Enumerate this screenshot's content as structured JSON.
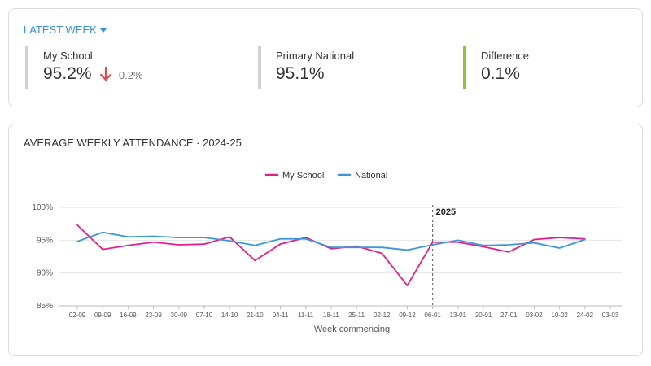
{
  "summary": {
    "dropdown_label": "LATEST WEEK",
    "my_school": {
      "label": "My School",
      "value": "95.2%",
      "change": "-0.2%",
      "change_direction": "down",
      "change_color": "#e24b4b"
    },
    "national": {
      "label": "Primary National",
      "value": "95.1%"
    },
    "difference": {
      "label": "Difference",
      "value": "0.1%",
      "accent_color": "#8cc63f"
    }
  },
  "chart": {
    "title": "AVERAGE WEEKLY ATTENDANCE · 2024-25"
  },
  "chart_data": {
    "type": "line",
    "title": "AVERAGE WEEKLY ATTENDANCE · 2024-25",
    "xlabel": "Week commencing",
    "ylabel": "",
    "categories": [
      "02-09",
      "09-09",
      "16-09",
      "23-09",
      "30-09",
      "07-10",
      "14-10",
      "21-10",
      "04-11",
      "11-11",
      "18-11",
      "25-11",
      "02-12",
      "09-12",
      "06-01",
      "13-01",
      "20-01",
      "27-01",
      "03-02",
      "10-02",
      "24-02",
      "03-03"
    ],
    "y_ticks": [
      "85%",
      "90%",
      "95%",
      "100%"
    ],
    "ylim": [
      85,
      100
    ],
    "legend_position": "top-center",
    "grid": "horizontal",
    "series": [
      {
        "name": "My School",
        "color": "#e0208a",
        "values": [
          97.3,
          93.6,
          94.2,
          94.7,
          94.3,
          94.4,
          95.5,
          91.9,
          94.4,
          95.4,
          93.7,
          94.1,
          93.0,
          88.1,
          94.7,
          94.7,
          94.0,
          93.2,
          95.1,
          95.4,
          95.2,
          null
        ]
      },
      {
        "name": "National",
        "color": "#3a98d8",
        "values": [
          94.8,
          96.2,
          95.5,
          95.6,
          95.4,
          95.4,
          94.9,
          94.2,
          95.2,
          95.2,
          93.9,
          93.9,
          93.9,
          93.5,
          94.3,
          95.0,
          94.2,
          94.3,
          94.6,
          93.8,
          95.1,
          null
        ]
      }
    ],
    "annotation": {
      "label": "2025",
      "at_category": "06-01"
    }
  }
}
